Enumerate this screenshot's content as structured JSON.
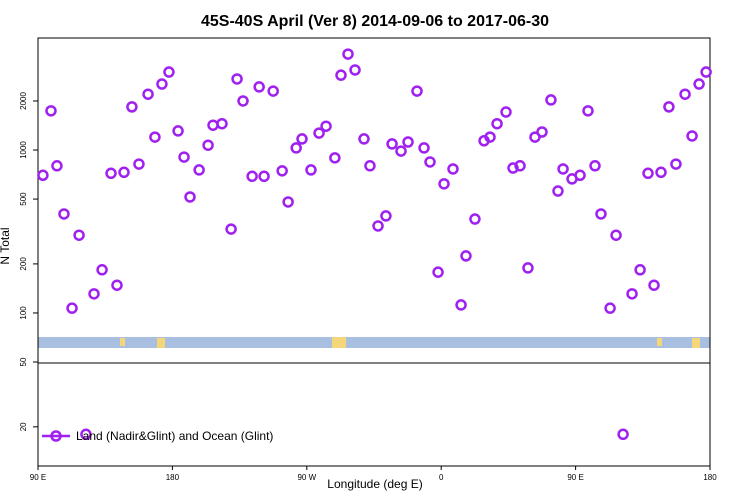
{
  "chart_data": {
    "type": "scatter",
    "title": "45S-40S April (Ver 8)   2014-09-06 to 2017-06-30",
    "xlabel": "Longitude (deg E)",
    "ylabel": "N Total",
    "xlim": [
      90,
      540
    ],
    "ylim": [
      11.5,
      4870
    ],
    "log_y": true,
    "xticks": [
      {
        "value": 90,
        "label": "90 E"
      },
      180,
      {
        "value": 270,
        "label": "90 W"
      },
      {
        "value": 360,
        "label": "0"
      },
      {
        "value": 450,
        "label": "90 E"
      },
      {
        "value": 540,
        "label": "180"
      }
    ],
    "yticks": [
      20,
      50,
      100,
      200,
      500,
      1000,
      2000
    ],
    "legend": "bottom-left",
    "series": [
      {
        "name": "Land (Nadir&Glint) and Ocean (Glint)",
        "color": "#a020f0",
        "x": [
          93.3,
          98.7,
          102.7,
          107.4,
          112.8,
          117.5,
          122.1,
          127.5,
          132.9,
          138.9,
          142.9,
          147.6,
          152.9,
          157.6,
          163.7,
          168.3,
          173.0,
          177.7,
          183.8,
          187.8,
          191.8,
          197.9,
          203.9,
          207.2,
          213.2,
          219.3,
          223.3,
          227.3,
          233.4,
          238.1,
          241.4,
          247.5,
          253.5,
          257.5,
          262.9,
          266.8,
          272.8,
          278.2,
          282.9,
          288.8,
          292.9,
          297.6,
          302.3,
          308.3,
          312.3,
          317.7,
          323.0,
          327.1,
          333.1,
          337.8,
          343.8,
          348.5,
          352.5,
          357.9,
          361.9,
          367.9,
          373.3,
          376.6,
          382.6,
          388.7,
          392.7,
          397.4,
          403.4,
          408.1,
          412.8,
          418.1,
          422.8,
          427.5,
          433.5,
          438.2,
          441.6,
          447.6,
          453.0,
          458.3,
          463.0,
          467.0,
          473.1,
          477.1,
          481.8,
          487.8,
          493.2,
          498.5,
          502.5,
          507.2,
          512.5,
          517.2,
          523.3,
          528.0,
          532.7,
          537.4
        ],
        "values": [
          700,
          1740,
          800,
          405,
          107,
          300,
          18,
          131,
          184,
          720,
          148,
          730,
          1840,
          820,
          2200,
          1200,
          2540,
          3010,
          1310,
          905,
          515,
          755,
          1070,
          1420,
          1450,
          327,
          2730,
          2000,
          690,
          2440,
          690,
          2300,
          745,
          480,
          1030,
          1170,
          755,
          1270,
          1400,
          895,
          2880,
          3880,
          3100,
          1170,
          800,
          342,
          394,
          1090,
          985,
          1120,
          2300,
          1030,
          845,
          178,
          620,
          765,
          112,
          224,
          377,
          1140,
          1200,
          1450,
          1710,
          775,
          800,
          189,
          1200,
          1290,
          2030,
          560,
          765,
          665,
          700,
          1740,
          800,
          405,
          107,
          300,
          18,
          131,
          184,
          720,
          148,
          730,
          1840,
          820,
          2200,
          1220,
          2540,
          3010
        ]
      }
    ]
  }
}
